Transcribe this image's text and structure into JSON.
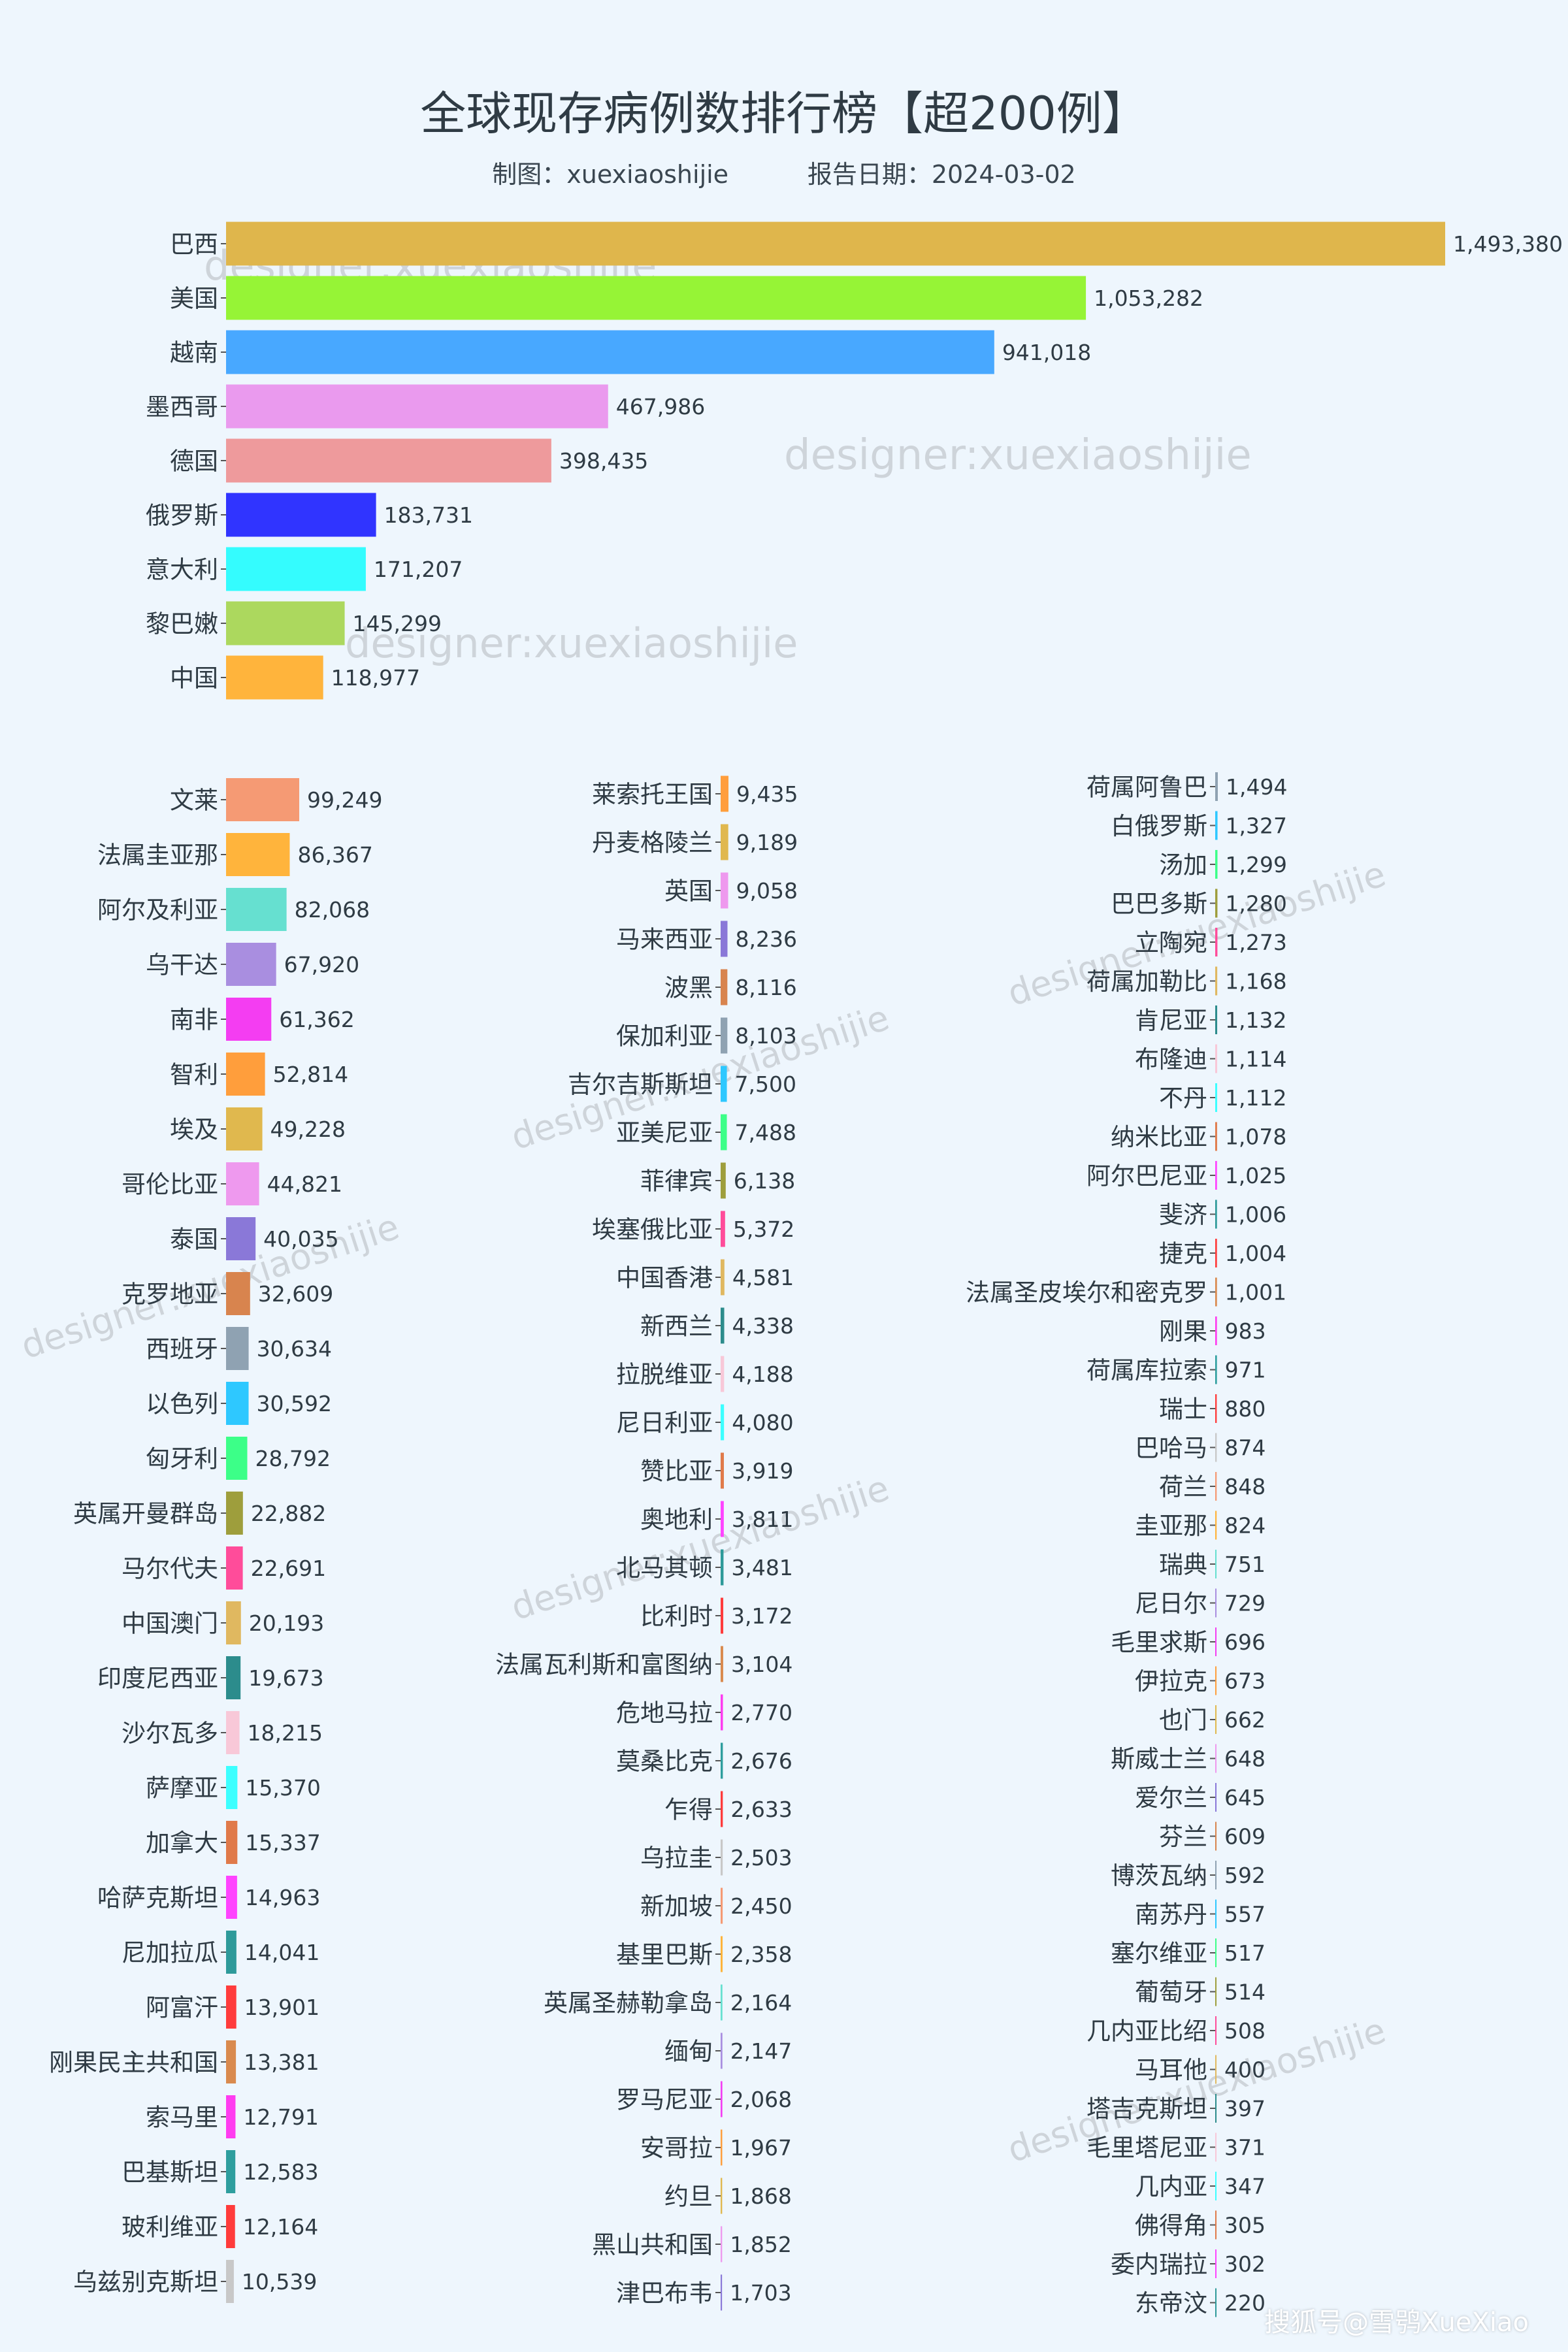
{
  "header": {
    "title": "全球现存病例数排行榜【超200例】",
    "maker": "制图：xuexiaoshijie",
    "report_date": "报告日期：2024-03-02"
  },
  "watermark": "designer:xuexiaoshijie",
  "footer": "搜狐号@雪鸮XueXiao",
  "colors": {
    "background": "#eef6fd",
    "palette": [
      "#d98a4e",
      "#ff3cf0",
      "#2e9e9e",
      "#ff3b3b",
      "#c8c8c8",
      "#f59a74",
      "#ffb43c",
      "#66e0d0",
      "#a98ee0",
      "#f43df2",
      "#ff9e3c",
      "#e0b84e",
      "#ee99ee",
      "#8a78d8",
      "#d8844e",
      "#8fa2b2",
      "#2ec8ff",
      "#3cff88",
      "#9e9e3c",
      "#ff4c9a",
      "#e0b860",
      "#2c8c8c",
      "#f8c8d8",
      "#3cffff",
      "#e07a4a",
      "#ff44ff",
      "#2e9a9a",
      "#ff3c3c"
    ]
  },
  "chart_data": [
    {
      "type": "bar",
      "orientation": "horizontal",
      "xlim": [
        0,
        1493380
      ],
      "categories": [
        "巴西",
        "美国",
        "越南",
        "墨西哥",
        "德国",
        "俄罗斯",
        "意大利",
        "黎巴嫩",
        "中国"
      ],
      "values": [
        1493380,
        1053282,
        941018,
        467986,
        398435,
        183731,
        171207,
        145299,
        118977
      ],
      "labels": [
        "1,493,380",
        "1,053,282",
        "941,018",
        "467,986",
        "398,435",
        "183,731",
        "171,207",
        "145,299",
        "118,977"
      ],
      "colors": [
        "#dfb64c",
        "#96f436",
        "#48a8ff",
        "#ea9aee",
        "#ee9a9c",
        "#3034ff",
        "#34fcfe",
        "#acd85e",
        "#ffb43c"
      ]
    },
    {
      "type": "bar",
      "orientation": "horizontal",
      "xlim": [
        0,
        1493380
      ],
      "categories": [
        "文莱",
        "法属圭亚那",
        "阿尔及利亚",
        "乌干达",
        "南非",
        "智利",
        "埃及",
        "哥伦比亚",
        "泰国",
        "克罗地亚",
        "西班牙",
        "以色列",
        "匈牙利",
        "英属开曼群岛",
        "马尔代夫",
        "中国澳门",
        "印度尼西亚",
        "沙尔瓦多",
        "萨摩亚",
        "加拿大",
        "哈萨克斯坦",
        "尼加拉瓜",
        "阿富汗",
        "刚果民主共和国",
        "索马里",
        "巴基斯坦",
        "玻利维亚",
        "乌兹别克斯坦"
      ],
      "values": [
        99249,
        86367,
        82068,
        67920,
        61362,
        52814,
        49228,
        44821,
        40035,
        32609,
        30634,
        30592,
        28792,
        22882,
        22691,
        20193,
        19673,
        18215,
        15370,
        15337,
        14963,
        14041,
        13901,
        13381,
        12791,
        12583,
        12164,
        10539
      ],
      "labels": [
        "99,249",
        "86,367",
        "82,068",
        "67,920",
        "61,362",
        "52,814",
        "49,228",
        "44,821",
        "40,035",
        "32,609",
        "30,634",
        "30,592",
        "28,792",
        "22,882",
        "22,691",
        "20,193",
        "19,673",
        "18,215",
        "15,370",
        "15,337",
        "14,963",
        "14,041",
        "13,901",
        "13,381",
        "12,791",
        "12,583",
        "12,164",
        "10,539"
      ]
    },
    {
      "type": "bar",
      "orientation": "horizontal",
      "xlim": [
        0,
        1493380
      ],
      "categories": [
        "莱索托王国",
        "丹麦格陵兰",
        "英国",
        "马来西亚",
        "波黑",
        "保加利亚",
        "吉尔吉斯斯坦",
        "亚美尼亚",
        "菲律宾",
        "埃塞俄比亚",
        "中国香港",
        "新西兰",
        "拉脱维亚",
        "尼日利亚",
        "赞比亚",
        "奥地利",
        "北马其顿",
        "比利时",
        "法属瓦利斯和富图纳",
        "危地马拉",
        "莫桑比克",
        "乍得",
        "乌拉圭",
        "新加坡",
        "基里巴斯",
        "英属圣赫勒拿岛",
        "缅甸",
        "罗马尼亚",
        "安哥拉",
        "约旦",
        "黑山共和国",
        "津巴布韦"
      ],
      "values": [
        9435,
        9189,
        9058,
        8236,
        8116,
        8103,
        7500,
        7488,
        6138,
        5372,
        4581,
        4338,
        4188,
        4080,
        3919,
        3811,
        3481,
        3172,
        3104,
        2770,
        2676,
        2633,
        2503,
        2450,
        2358,
        2164,
        2147,
        2068,
        1967,
        1868,
        1852,
        1703
      ],
      "labels": [
        "9,435",
        "9,189",
        "9,058",
        "8,236",
        "8,116",
        "8,103",
        "7,500",
        "7,488",
        "6,138",
        "5,372",
        "4,581",
        "4,338",
        "4,188",
        "4,080",
        "3,919",
        "3,811",
        "3,481",
        "3,172",
        "3,104",
        "2,770",
        "2,676",
        "2,633",
        "2,503",
        "2,450",
        "2,358",
        "2,164",
        "2,147",
        "2,068",
        "1,967",
        "1,868",
        "1,852",
        "1,703"
      ]
    },
    {
      "type": "bar",
      "orientation": "horizontal",
      "xlim": [
        0,
        1493380
      ],
      "categories": [
        "荷属阿鲁巴",
        "白俄罗斯",
        "汤加",
        "巴巴多斯",
        "立陶宛",
        "荷属加勒比",
        "肯尼亚",
        "布隆迪",
        "不丹",
        "纳米比亚",
        "阿尔巴尼亚",
        "斐济",
        "捷克",
        "法属圣皮埃尔和密克罗",
        "刚果",
        "荷属库拉索",
        "瑞士",
        "巴哈马",
        "荷兰",
        "圭亚那",
        "瑞典",
        "尼日尔",
        "毛里求斯",
        "伊拉克",
        "也门",
        "斯威士兰",
        "爱尔兰",
        "芬兰",
        "博茨瓦纳",
        "南苏丹",
        "塞尔维亚",
        "葡萄牙",
        "几内亚比绍",
        "马耳他",
        "塔吉克斯坦",
        "毛里塔尼亚",
        "几内亚",
        "佛得角",
        "委内瑞拉",
        "东帝汶"
      ],
      "values": [
        1494,
        1327,
        1299,
        1280,
        1273,
        1168,
        1132,
        1114,
        1112,
        1078,
        1025,
        1006,
        1004,
        1001,
        983,
        971,
        880,
        874,
        848,
        824,
        751,
        729,
        696,
        673,
        662,
        648,
        645,
        609,
        592,
        557,
        517,
        514,
        508,
        400,
        397,
        371,
        347,
        305,
        302,
        220
      ],
      "labels": [
        "1,494",
        "1,327",
        "1,299",
        "1,280",
        "1,273",
        "1,168",
        "1,132",
        "1,114",
        "1,112",
        "1,078",
        "1,025",
        "1,006",
        "1,004",
        "1,001",
        "983",
        "971",
        "880",
        "874",
        "848",
        "824",
        "751",
        "729",
        "696",
        "673",
        "662",
        "648",
        "645",
        "609",
        "592",
        "557",
        "517",
        "514",
        "508",
        "400",
        "397",
        "371",
        "347",
        "305",
        "302",
        "220"
      ]
    }
  ]
}
